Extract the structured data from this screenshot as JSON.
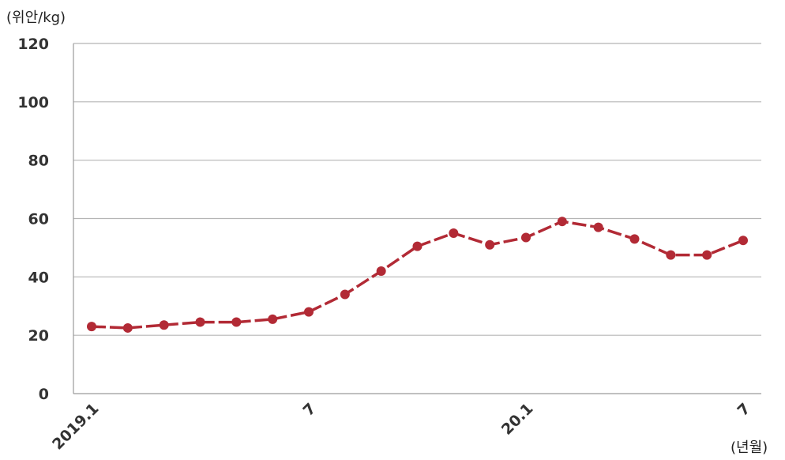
{
  "chart_data": {
    "type": "line",
    "title": "",
    "y_unit_label": "(위안/kg)",
    "x_unit_label": "(년월)",
    "ylim": [
      0,
      120
    ],
    "y_ticks": [
      "0",
      "20",
      "40",
      "60",
      "80",
      "100",
      "120"
    ],
    "x_tick_labels": [
      {
        "index": 0,
        "label": "2019.1"
      },
      {
        "index": 6,
        "label": "7"
      },
      {
        "index": 12,
        "label": "20.1"
      },
      {
        "index": 18,
        "label": "7"
      }
    ],
    "grid": true,
    "legend": "none",
    "line_color": "#b22a35",
    "series": [
      {
        "values": [
          23,
          22.5,
          23.5,
          24.5,
          24.5,
          25.5,
          28,
          34,
          42,
          50.5,
          55,
          51,
          53.5,
          59,
          57,
          53,
          47.5,
          47.5,
          52.5
        ]
      }
    ]
  }
}
